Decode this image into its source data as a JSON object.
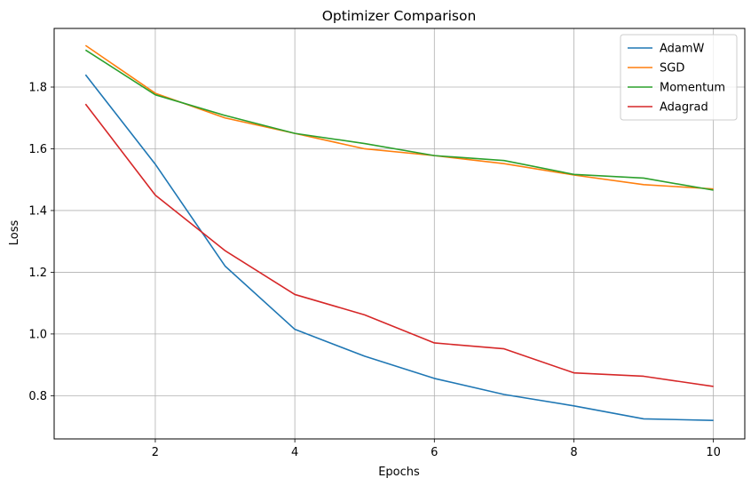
{
  "chart_data": {
    "type": "line",
    "title": "Optimizer Comparison",
    "xlabel": "Epochs",
    "ylabel": "Loss",
    "x": [
      1,
      2,
      3,
      4,
      5,
      6,
      7,
      8,
      9,
      10
    ],
    "xlim": [
      0.55,
      10.45
    ],
    "ylim": [
      0.66,
      1.99
    ],
    "xticks": [
      2,
      4,
      6,
      8,
      10
    ],
    "yticks": [
      0.8,
      1.0,
      1.2,
      1.4,
      1.6,
      1.8
    ],
    "xtick_labels": [
      "2",
      "4",
      "6",
      "8",
      "10"
    ],
    "ytick_labels": [
      "0.8",
      "1.0",
      "1.2",
      "1.4",
      "1.6",
      "1.8"
    ],
    "grid": true,
    "legend_position": "top-right",
    "series": [
      {
        "name": "AdamW",
        "color": "#1f77b4",
        "values": [
          1.84,
          1.55,
          1.22,
          1.015,
          0.928,
          0.856,
          0.804,
          0.767,
          0.725,
          0.72
        ]
      },
      {
        "name": "SGD",
        "color": "#ff7f0e",
        "values": [
          1.935,
          1.78,
          1.7,
          1.65,
          1.6,
          1.578,
          1.552,
          1.515,
          1.484,
          1.47
        ]
      },
      {
        "name": "Momentum",
        "color": "#2ca02c",
        "values": [
          1.92,
          1.775,
          1.708,
          1.65,
          1.617,
          1.578,
          1.562,
          1.517,
          1.505,
          1.466
        ]
      },
      {
        "name": "Adagrad",
        "color": "#d62728",
        "values": [
          1.745,
          1.45,
          1.27,
          1.128,
          1.062,
          0.971,
          0.952,
          0.874,
          0.863,
          0.83
        ]
      }
    ]
  }
}
